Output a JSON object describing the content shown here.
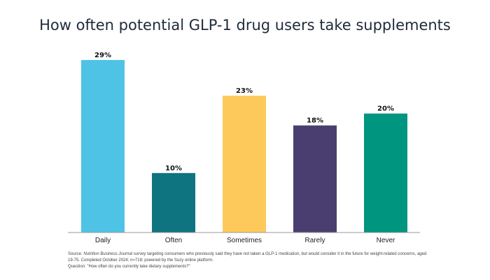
{
  "chart_data": {
    "type": "bar",
    "title": "How often potential GLP-1 drug users take supplements",
    "categories": [
      "Daily",
      "Often",
      "Sometimes",
      "Rarely",
      "Never"
    ],
    "values": [
      29,
      10,
      23,
      18,
      20
    ],
    "data_labels": [
      "29%",
      "10%",
      "23%",
      "18%",
      "20%"
    ],
    "colors": [
      "#4ec3e6",
      "#0e7480",
      "#fec95b",
      "#4a3e70",
      "#00957f"
    ],
    "ylim": [
      0,
      30
    ],
    "grid": false,
    "xlabel": "",
    "ylabel": ""
  },
  "footnote": {
    "source_prefix": "Source: ",
    "source_italic": "Nutrition Business Journal",
    "source_text": " survey targeting consumers who previously said they have not taken a GLP-1 medication, but would consider it in the future for weight-related concerns, aged 19-75. Completed October 2024;  n=718; powered by the Suzy online platform.",
    "question": "Question: \"How often do you currently take dietary supplements?\""
  }
}
